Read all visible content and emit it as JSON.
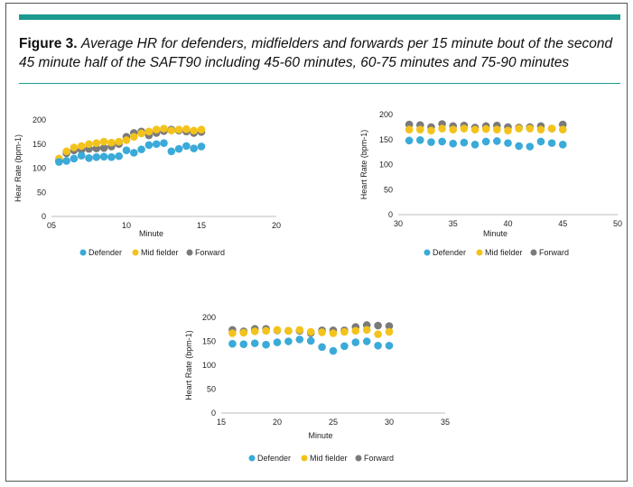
{
  "figure": {
    "label": "Figure 3.",
    "caption": "Average HR for defenders, midfielders and forwards per 15 minute bout of the second 45 minute half of the SAFT90 including 45-60 minutes, 60-75 minutes and 75-90 minutes"
  },
  "colors": {
    "accent": "#1b9a8e",
    "defender": "#3aaad9",
    "midfielder": "#f3c31c",
    "forward": "#7a7a7a"
  },
  "chart_data": [
    {
      "type": "scatter",
      "xlabel": "Minute",
      "ylabel": "Hear Rate (bpm-1)",
      "xticks": [
        "05",
        "10",
        "15",
        "20"
      ],
      "xtick_values": [
        5,
        10,
        15,
        20
      ],
      "xlim": [
        5,
        20
      ],
      "yticks": [
        0,
        50,
        100,
        150,
        200
      ],
      "ylim": [
        0,
        200
      ],
      "legend": [
        "Defender",
        "Mid fielder",
        "Forward"
      ],
      "legend_position": "bottom",
      "series": [
        {
          "name": "Defender",
          "x": [
            5.5,
            6,
            6.5,
            7,
            7.5,
            8,
            8.5,
            9,
            9.5,
            10,
            10.5,
            11,
            11.5,
            12,
            12.5,
            13,
            13.5,
            14,
            14.5,
            15
          ],
          "y": [
            113,
            115,
            120,
            126,
            121,
            123,
            124,
            123,
            125,
            137,
            132,
            139,
            148,
            150,
            152,
            135,
            140,
            146,
            141,
            145
          ]
        },
        {
          "name": "Mid fielder",
          "x": [
            5.5,
            6,
            6.5,
            7,
            7.5,
            8,
            8.5,
            9,
            9.5,
            10,
            10.5,
            11,
            11.5,
            12,
            12.5,
            13,
            13.5,
            14,
            14.5,
            15
          ],
          "y": [
            120,
            135,
            143,
            146,
            150,
            152,
            155,
            153,
            155,
            158,
            165,
            172,
            176,
            180,
            182,
            178,
            180,
            181,
            178,
            180
          ]
        },
        {
          "name": "Forward",
          "x": [
            5.5,
            6,
            6.5,
            7,
            7.5,
            8,
            8.5,
            9,
            9.5,
            10,
            10.5,
            11,
            11.5,
            12,
            12.5,
            13,
            13.5,
            14,
            14.5,
            15
          ],
          "y": [
            116,
            131,
            137,
            138,
            140,
            141,
            142,
            145,
            150,
            165,
            173,
            176,
            168,
            173,
            177,
            180,
            178,
            176,
            173,
            175
          ]
        }
      ]
    },
    {
      "type": "scatter",
      "xlabel": "Minute",
      "ylabel": "Heart Rate (bpm-1)",
      "xticks": [
        "30",
        "35",
        "40",
        "45",
        "50"
      ],
      "xtick_values": [
        30,
        35,
        40,
        45,
        50
      ],
      "xlim": [
        30,
        50
      ],
      "yticks": [
        0,
        50,
        100,
        150,
        200
      ],
      "ylim": [
        0,
        200
      ],
      "legend": [
        "Defender",
        "Mid fielder",
        "Forward"
      ],
      "legend_position": "bottom",
      "series": [
        {
          "name": "Defender",
          "x": [
            31,
            32,
            33,
            34,
            35,
            36,
            37,
            38,
            39,
            40,
            41,
            42,
            43,
            44,
            45
          ],
          "y": [
            148,
            149,
            145,
            146,
            142,
            144,
            140,
            146,
            147,
            143,
            137,
            136,
            146,
            143,
            140
          ]
        },
        {
          "name": "Mid fielder",
          "x": [
            31,
            32,
            33,
            34,
            35,
            36,
            37,
            38,
            39,
            40,
            41,
            42,
            43,
            44,
            45
          ],
          "y": [
            170,
            170,
            168,
            172,
            170,
            172,
            170,
            171,
            170,
            168,
            172,
            172,
            170,
            172,
            170
          ]
        },
        {
          "name": "Forward",
          "x": [
            31,
            32,
            33,
            34,
            35,
            36,
            37,
            38,
            39,
            40,
            41,
            42,
            43,
            44,
            45
          ],
          "y": [
            180,
            179,
            175,
            181,
            177,
            178,
            174,
            177,
            178,
            175,
            174,
            175,
            177,
            172,
            180
          ]
        }
      ]
    },
    {
      "type": "scatter",
      "xlabel": "Minute",
      "ylabel": "Heart Rate (bpm-1)",
      "xticks": [
        "15",
        "20",
        "25",
        "30",
        "35"
      ],
      "xtick_values": [
        15,
        20,
        25,
        30,
        35
      ],
      "xlim": [
        15,
        35
      ],
      "yticks": [
        0,
        50,
        100,
        150,
        200
      ],
      "ylim": [
        0,
        200
      ],
      "legend": [
        "Defender",
        "Mid fielder",
        "Forward"
      ],
      "legend_position": "bottom",
      "series": [
        {
          "name": "Defender",
          "x": [
            16,
            17,
            18,
            19,
            20,
            21,
            22,
            23,
            24,
            25,
            26,
            27,
            28,
            29,
            30
          ],
          "y": [
            145,
            144,
            146,
            143,
            148,
            150,
            154,
            151,
            138,
            130,
            140,
            148,
            150,
            141,
            141
          ]
        },
        {
          "name": "Mid fielder",
          "x": [
            16,
            17,
            18,
            19,
            20,
            21,
            22,
            23,
            24,
            25,
            26,
            27,
            28,
            29,
            30
          ],
          "y": [
            167,
            168,
            171,
            172,
            174,
            172,
            174,
            170,
            169,
            167,
            170,
            172,
            174,
            165,
            170
          ]
        },
        {
          "name": "Forward",
          "x": [
            16,
            17,
            18,
            19,
            20,
            21,
            22,
            23,
            24,
            25,
            26,
            27,
            28,
            29,
            30
          ],
          "y": [
            174,
            171,
            176,
            176,
            173,
            172,
            172,
            167,
            173,
            173,
            173,
            180,
            184,
            183,
            182
          ]
        }
      ]
    }
  ]
}
